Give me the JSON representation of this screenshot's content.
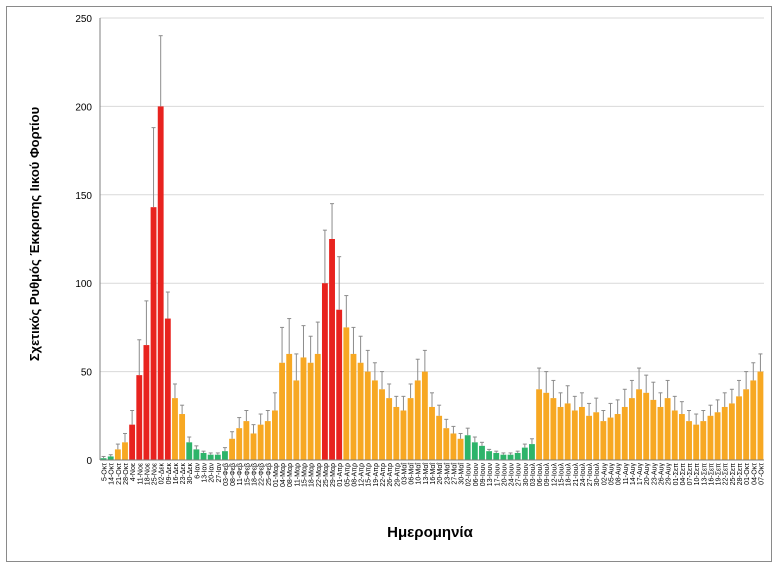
{
  "chart_data": {
    "type": "bar",
    "xlabel": "Ημερομηνία",
    "ylabel": "Σχετικός Ρυθμός Έκκρισης Ιικού Φορτίου",
    "ylim": [
      0,
      250
    ],
    "yticks": [
      0,
      50,
      100,
      150,
      200,
      250
    ],
    "grid": true,
    "colors": {
      "high": "#e8231f",
      "medium": "#f7a823",
      "low": "#2db46a",
      "error": "#8c8c8c",
      "grid": "#d9d9d9"
    },
    "categories": [
      "5-Οκτ",
      "14-Οκτ",
      "21-Οκτ",
      "28-Οκτ",
      "4-Νοε",
      "11-Νοε",
      "18-Νοε",
      "25-Νοε",
      "02-Δεκ",
      "09-Δεκ",
      "16-Δεκ",
      "23-Δεκ",
      "30-Δεκ",
      "6-Ιαν",
      "13-Ιαν",
      "20-Ιαν",
      "27-Ιαν",
      "03-Φεβ",
      "08-Φεβ",
      "11-Φεβ",
      "15-Φεβ",
      "18-Φεβ",
      "22-Φεβ",
      "25-Φεβ",
      "01-Μαρ",
      "04-Μαρ",
      "08-Μαρ",
      "11-Μαρ",
      "15-Μαρ",
      "18-Μαρ",
      "22-Μαρ",
      "25-Μαρ",
      "29-Μαρ",
      "01-Απρ",
      "05-Απρ",
      "08-Απρ",
      "12-Απρ",
      "15-Απρ",
      "19-Απρ",
      "22-Απρ",
      "26-Απρ",
      "29-Απρ",
      "03-Μαΐ",
      "06-Μαΐ",
      "10-Μαΐ",
      "13-Μαΐ",
      "16-Μαΐ",
      "20-Μαΐ",
      "23-Μαΐ",
      "27-Μαΐ",
      "30-Μαΐ",
      "02-Ιουν",
      "06-Ιουν",
      "09-Ιουν",
      "13-Ιουν",
      "17-Ιουν",
      "20-Ιουν",
      "24-Ιουν",
      "27-Ιουν",
      "30-Ιουν",
      "03-Ιουλ",
      "06-Ιουλ",
      "09-Ιουλ",
      "12-Ιουλ",
      "15-Ιουλ",
      "18-Ιουλ",
      "21-Ιουλ",
      "24-Ιουλ",
      "27-Ιουλ",
      "30-Ιουλ",
      "02-Αυγ",
      "05-Αυγ",
      "08-Αυγ",
      "11-Αυγ",
      "14-Αυγ",
      "17-Αυγ",
      "20-Αυγ",
      "23-Αυγ",
      "26-Αυγ",
      "29-Αυγ",
      "01-Σεπ",
      "04-Σεπ",
      "07-Σεπ",
      "10-Σεπ",
      "13-Σεπ",
      "16-Σεπ",
      "19-Σεπ",
      "22-Σεπ",
      "25-Σεπ",
      "28-Σεπ",
      "01-Οκτ",
      "04-Οκτ",
      "07-Οκτ"
    ],
    "values": [
      1,
      2,
      6,
      10,
      20,
      48,
      65,
      143,
      200,
      80,
      35,
      26,
      10,
      6,
      4,
      3,
      3,
      5,
      12,
      18,
      22,
      15,
      20,
      22,
      28,
      55,
      60,
      45,
      58,
      55,
      60,
      100,
      125,
      85,
      75,
      60,
      55,
      50,
      45,
      40,
      35,
      30,
      28,
      35,
      45,
      50,
      30,
      25,
      18,
      15,
      12,
      14,
      10,
      8,
      5,
      4,
      3,
      3,
      4,
      7,
      9,
      40,
      38,
      35,
      30,
      32,
      28,
      30,
      25,
      27,
      22,
      24,
      26,
      30,
      35,
      40,
      38,
      34,
      30,
      35,
      28,
      26,
      22,
      20,
      22,
      25,
      27,
      30,
      32,
      36,
      40,
      45,
      50
    ],
    "errors": [
      1,
      1,
      3,
      5,
      8,
      20,
      25,
      45,
      40,
      15,
      8,
      5,
      3,
      2,
      1,
      1,
      1,
      2,
      4,
      6,
      6,
      5,
      6,
      6,
      10,
      20,
      20,
      15,
      18,
      15,
      18,
      30,
      20,
      30,
      18,
      15,
      15,
      12,
      10,
      10,
      8,
      6,
      8,
      8,
      12,
      12,
      8,
      6,
      5,
      4,
      3,
      4,
      3,
      2,
      1,
      1,
      1,
      1,
      1,
      2,
      3,
      12,
      12,
      10,
      8,
      10,
      8,
      8,
      7,
      8,
      6,
      8,
      8,
      10,
      10,
      12,
      10,
      10,
      8,
      10,
      8,
      7,
      6,
      6,
      6,
      6,
      7,
      8,
      8,
      9,
      10,
      10,
      10
    ],
    "status": [
      "low",
      "low",
      "medium",
      "medium",
      "high",
      "high",
      "high",
      "high",
      "high",
      "high",
      "medium",
      "medium",
      "low",
      "low",
      "low",
      "low",
      "low",
      "low",
      "medium",
      "medium",
      "medium",
      "medium",
      "medium",
      "medium",
      "medium",
      "medium",
      "medium",
      "medium",
      "medium",
      "medium",
      "medium",
      "high",
      "high",
      "high",
      "medium",
      "medium",
      "medium",
      "medium",
      "medium",
      "medium",
      "medium",
      "medium",
      "medium",
      "medium",
      "medium",
      "medium",
      "medium",
      "medium",
      "medium",
      "medium",
      "medium",
      "low",
      "low",
      "low",
      "low",
      "low",
      "low",
      "low",
      "low",
      "low",
      "low",
      "medium",
      "medium",
      "medium",
      "medium",
      "medium",
      "medium",
      "medium",
      "medium",
      "medium",
      "medium",
      "medium",
      "medium",
      "medium",
      "medium",
      "medium",
      "medium",
      "medium",
      "medium",
      "medium",
      "medium",
      "medium",
      "medium",
      "medium",
      "medium",
      "medium",
      "medium",
      "medium",
      "medium",
      "medium",
      "medium",
      "medium",
      "medium"
    ]
  }
}
